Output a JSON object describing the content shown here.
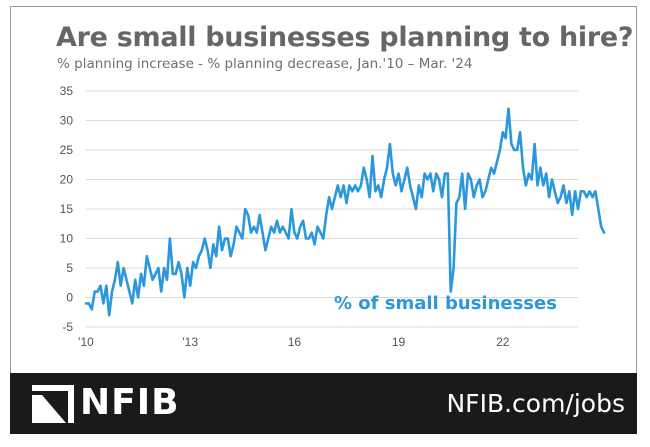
{
  "header": {
    "title": "Are small businesses planning to hire?",
    "subtitle": "% planning increase - % planning decrease,  Jan.'10 – Mar. '24"
  },
  "footer": {
    "logo_text": "NFIB",
    "link_text": "NFIB.com/jobs"
  },
  "colors": {
    "line": "#2b97dc",
    "grid": "#d9d9d9",
    "title": "#666666",
    "footer_bg": "#1a1a1a"
  },
  "chart_data": {
    "type": "line",
    "title": "Are small businesses planning to hire?",
    "subtitle": "% planning increase - % planning decrease,  Jan.'10 – Mar. '24",
    "xlabel": "",
    "ylabel": "",
    "ylim": [
      -5,
      35
    ],
    "yticks": [
      35,
      30,
      25,
      20,
      15,
      10,
      5,
      0,
      -5
    ],
    "xticks": [
      {
        "label": "'10",
        "year": 2010
      },
      {
        "label": "'13",
        "year": 2013
      },
      {
        "label": "16",
        "year": 2016
      },
      {
        "label": "19",
        "year": 2019
      },
      {
        "label": "22",
        "year": 2022
      }
    ],
    "grid": "horizontal",
    "x_start": "2010-01",
    "x_end": "2024-03",
    "series": [
      {
        "name": "% of small businesses",
        "values": [
          -1,
          -1,
          -2,
          1,
          1,
          2,
          -1,
          2,
          -3,
          1,
          3,
          6,
          2,
          5,
          3,
          1,
          -1,
          3,
          0,
          4,
          2,
          7,
          5,
          3,
          4,
          5,
          1,
          5,
          3,
          10,
          4,
          4,
          6,
          4,
          0,
          5,
          2,
          6,
          5,
          7,
          8,
          10,
          8,
          5,
          9,
          7,
          12,
          8,
          10,
          10,
          7,
          9,
          12,
          11,
          10,
          15,
          14,
          11,
          12,
          11,
          14,
          11,
          8,
          10,
          12,
          11,
          13,
          11,
          12,
          11,
          10,
          15,
          11,
          10,
          12,
          13,
          10,
          10,
          11,
          9,
          12,
          11,
          10,
          14,
          17,
          15,
          17,
          19,
          17,
          19,
          16,
          19,
          18,
          19,
          18,
          19,
          22,
          20,
          17,
          24,
          18,
          19,
          17,
          20,
          22,
          26,
          21,
          19,
          21,
          18,
          20,
          22,
          19,
          17,
          15,
          19,
          17,
          21,
          20,
          21,
          18,
          21,
          20,
          17,
          21,
          21,
          1,
          5,
          16,
          17,
          21,
          15,
          21,
          20,
          17,
          19,
          20,
          17,
          18,
          20,
          22,
          21,
          23,
          25,
          28,
          27,
          32,
          26,
          25,
          25,
          28,
          22,
          19,
          21,
          20,
          26,
          19,
          22,
          19,
          21,
          17,
          20,
          18,
          16,
          17,
          19,
          16,
          18,
          14,
          18,
          15,
          18,
          18,
          17,
          18,
          17,
          18,
          15,
          12,
          11
        ]
      }
    ]
  }
}
